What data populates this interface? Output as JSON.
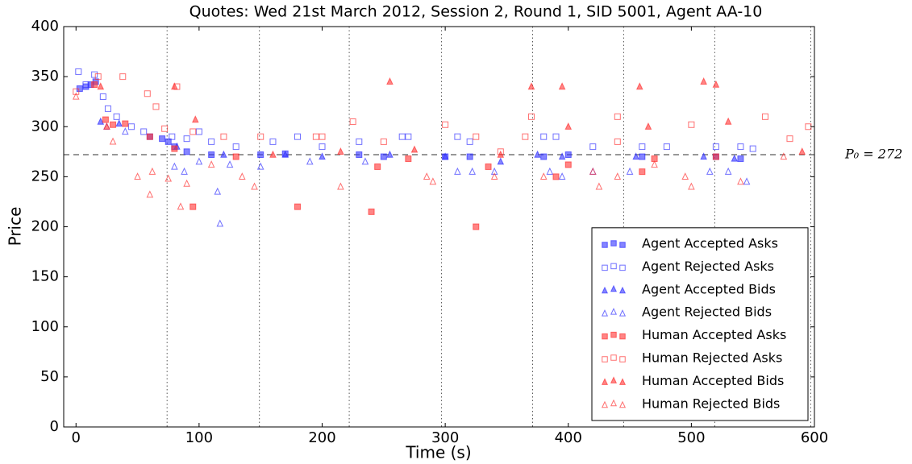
{
  "chart_data": {
    "type": "scatter",
    "title": "Quotes: Wed 21st March 2012, Session 2, Round 1, SID 5001, Agent AA-10",
    "x_label": "Time (s)",
    "y_label": "Price",
    "xlim": [
      -10,
      600
    ],
    "ylim": [
      0,
      400
    ],
    "xticks": [
      0,
      100,
      200,
      300,
      400,
      500,
      600
    ],
    "yticks": [
      0,
      50,
      100,
      150,
      200,
      250,
      300,
      350,
      400
    ],
    "reference_line": 272,
    "reference_label": "P₀ = 272",
    "vlines": [
      74,
      149,
      222,
      297,
      371,
      445,
      519,
      597
    ],
    "legend": "lower right",
    "series": [
      {
        "name": "Agent Accepted Asks",
        "color": "#3333ff",
        "marker": "square",
        "filled": true,
        "x": [
          3,
          8,
          12,
          16,
          60,
          70,
          75,
          80,
          90,
          110,
          150,
          170,
          230,
          250,
          300,
          320,
          380,
          400,
          460,
          520,
          540
        ],
        "values": [
          338,
          340,
          342,
          345,
          290,
          288,
          285,
          280,
          275,
          272,
          272,
          273,
          272,
          270,
          270,
          270,
          270,
          272,
          270,
          270,
          268
        ]
      },
      {
        "name": "Agent Rejected Asks",
        "color": "#3333ff",
        "marker": "square",
        "filled": false,
        "x": [
          2,
          8,
          15,
          22,
          26,
          33,
          45,
          55,
          78,
          90,
          100,
          110,
          130,
          160,
          180,
          200,
          230,
          265,
          270,
          310,
          320,
          380,
          390,
          420,
          460,
          480,
          520,
          540,
          550
        ],
        "values": [
          355,
          342,
          352,
          330,
          318,
          310,
          300,
          295,
          290,
          288,
          295,
          285,
          280,
          285,
          290,
          280,
          285,
          290,
          290,
          290,
          285,
          290,
          290,
          280,
          280,
          280,
          280,
          280,
          278
        ]
      },
      {
        "name": "Agent Accepted Bids",
        "color": "#3333ff",
        "marker": "triangle",
        "filled": true,
        "x": [
          20,
          35,
          82,
          120,
          170,
          200,
          255,
          300,
          345,
          375,
          395,
          455,
          510,
          535
        ],
        "values": [
          305,
          303,
          280,
          272,
          272,
          270,
          272,
          270,
          265,
          272,
          270,
          270,
          270,
          268
        ]
      },
      {
        "name": "Agent Rejected Bids",
        "color": "#3333ff",
        "marker": "triangle",
        "filled": false,
        "x": [
          25,
          40,
          80,
          88,
          100,
          115,
          117,
          125,
          150,
          190,
          235,
          310,
          322,
          340,
          385,
          395,
          420,
          450,
          515,
          530,
          545
        ],
        "values": [
          300,
          295,
          260,
          255,
          265,
          235,
          203,
          262,
          260,
          265,
          265,
          255,
          255,
          255,
          255,
          250,
          255,
          255,
          255,
          255,
          245
        ]
      },
      {
        "name": "Human Accepted Asks",
        "color": "#ff3333",
        "marker": "square",
        "filled": true,
        "x": [
          15,
          24,
          30,
          40,
          60,
          80,
          95,
          130,
          180,
          240,
          245,
          270,
          325,
          335,
          390,
          400,
          460,
          470,
          520
        ],
        "values": [
          342,
          307,
          302,
          303,
          290,
          278,
          220,
          270,
          220,
          215,
          260,
          268,
          200,
          260,
          250,
          262,
          255,
          268,
          270
        ]
      },
      {
        "name": "Human Rejected Asks",
        "color": "#ff3333",
        "marker": "square",
        "filled": false,
        "x": [
          0,
          18,
          38,
          58,
          65,
          72,
          82,
          95,
          120,
          150,
          195,
          200,
          225,
          250,
          300,
          325,
          345,
          365,
          370,
          440,
          440,
          500,
          560,
          580,
          595
        ],
        "values": [
          335,
          350,
          350,
          333,
          320,
          298,
          340,
          295,
          290,
          290,
          290,
          290,
          305,
          285,
          302,
          290,
          275,
          290,
          310,
          285,
          310,
          302,
          310,
          288,
          300
        ]
      },
      {
        "name": "Human Accepted Bids",
        "color": "#ff3333",
        "marker": "triangle",
        "filled": true,
        "x": [
          20,
          25,
          80,
          97,
          160,
          215,
          255,
          275,
          345,
          370,
          395,
          400,
          458,
          465,
          510,
          520,
          530,
          590
        ],
        "values": [
          340,
          300,
          340,
          307,
          272,
          275,
          345,
          277,
          272,
          340,
          340,
          300,
          340,
          300,
          345,
          342,
          305,
          275
        ]
      },
      {
        "name": "Human Rejected Bids",
        "color": "#ff3333",
        "marker": "triangle",
        "filled": false,
        "x": [
          0,
          30,
          50,
          60,
          62,
          75,
          85,
          90,
          110,
          135,
          145,
          215,
          285,
          290,
          340,
          380,
          420,
          425,
          440,
          470,
          495,
          500,
          540,
          575
        ],
        "values": [
          330,
          285,
          250,
          232,
          255,
          248,
          220,
          243,
          262,
          250,
          240,
          240,
          250,
          245,
          250,
          250,
          255,
          240,
          250,
          262,
          250,
          240,
          245,
          270
        ]
      }
    ]
  }
}
